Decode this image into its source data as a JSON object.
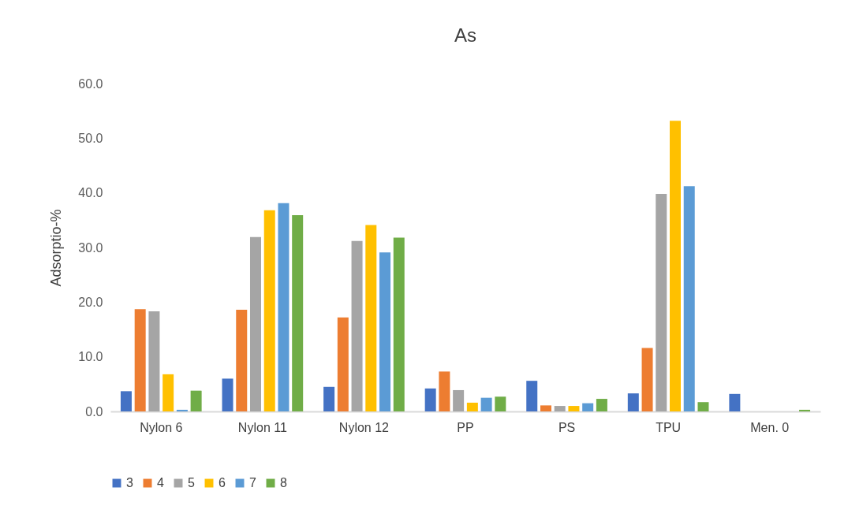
{
  "chart_data": {
    "type": "bar",
    "title": "As",
    "ylabel": "Adsorptio-%",
    "categories": [
      "Nylon 6",
      "Nylon 11",
      "Nylon 12",
      "PP",
      "PS",
      "TPU",
      "Men. 0"
    ],
    "series": [
      {
        "name": "3",
        "color": "#4472c4",
        "values": [
          3.7,
          6.0,
          4.5,
          4.2,
          5.6,
          3.3,
          3.2
        ]
      },
      {
        "name": "4",
        "color": "#ed7d31",
        "values": [
          18.7,
          18.6,
          17.2,
          7.3,
          1.1,
          11.6,
          0
        ]
      },
      {
        "name": "5",
        "color": "#a5a5a5",
        "values": [
          18.3,
          31.9,
          31.2,
          3.9,
          1.0,
          39.8,
          0
        ]
      },
      {
        "name": "6",
        "color": "#ffc000",
        "values": [
          6.8,
          36.8,
          34.1,
          1.6,
          1.0,
          53.2,
          0
        ]
      },
      {
        "name": "7",
        "color": "#5b9bd5",
        "values": [
          0.3,
          38.1,
          29.1,
          2.5,
          1.5,
          41.2,
          0
        ]
      },
      {
        "name": "8",
        "color": "#70ad47",
        "values": [
          3.8,
          35.9,
          31.8,
          2.7,
          2.3,
          1.7,
          0.3
        ]
      }
    ],
    "ylim": [
      0,
      60
    ],
    "yticks": [
      {
        "value": 0,
        "label": "0.0"
      },
      {
        "value": 10,
        "label": "10.0"
      },
      {
        "value": 20,
        "label": "20.0"
      },
      {
        "value": 30,
        "label": "30.0"
      },
      {
        "value": 40,
        "label": "40.0"
      },
      {
        "value": 50,
        "label": "50.0"
      },
      {
        "value": 60,
        "label": "60.0"
      }
    ],
    "grid": false,
    "legend": "bottom"
  }
}
